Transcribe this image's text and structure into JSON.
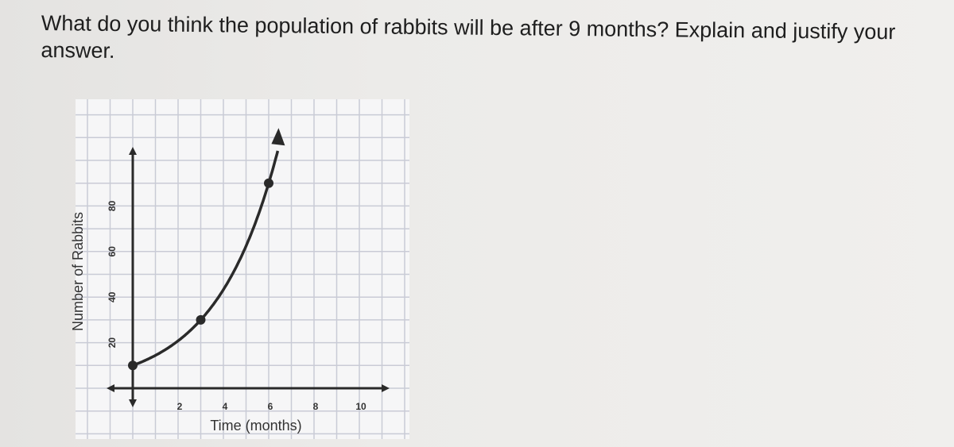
{
  "question": {
    "text": "What do you think the population of rabbits will be after 9 months? Explain and justify your answer."
  },
  "chart_data": {
    "type": "line",
    "title": "",
    "xlabel": "Time (months)",
    "ylabel": "Number of Rabbits",
    "xlim": [
      -1,
      11
    ],
    "ylim": [
      -5,
      120
    ],
    "xticks": [
      2,
      4,
      6,
      8,
      10
    ],
    "yticks": [
      20,
      40,
      60,
      80
    ],
    "grid": true,
    "points": [
      {
        "x": 0,
        "y": 10
      },
      {
        "x": 3,
        "y": 30
      },
      {
        "x": 6,
        "y": 90
      }
    ],
    "curve_end": {
      "x": 6.4,
      "y": 110
    },
    "colors": {
      "curve": "#2a2a2a",
      "grid": "#c9cbd6"
    }
  }
}
